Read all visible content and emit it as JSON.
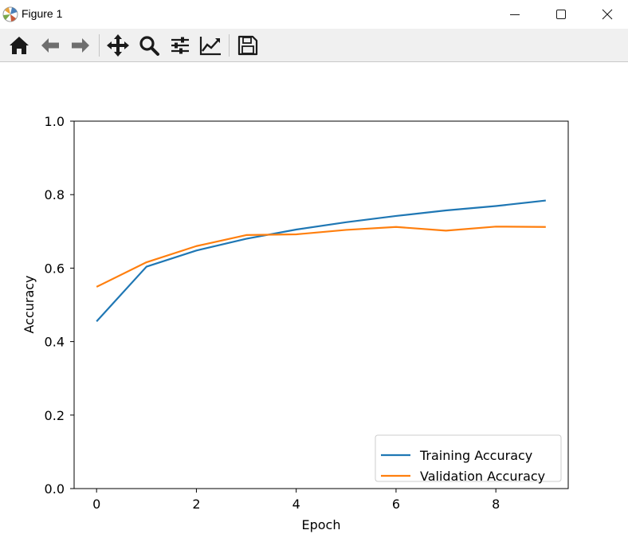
{
  "window": {
    "title": "Figure 1",
    "app_icon": "matplotlib-logo-icon",
    "controls": [
      "minimize-icon",
      "maximize-icon",
      "close-icon"
    ]
  },
  "toolbar": {
    "tools": [
      "home-icon",
      "back-arrow-icon",
      "forward-arrow-icon",
      "pan-move-icon",
      "zoom-magnifier-icon",
      "configure-subplots-icon",
      "edit-axis-icon",
      "save-floppy-icon"
    ],
    "colors": {
      "icon": "#1a1a1a",
      "icon_disabled": "#6e6e6e",
      "background": "#f0f0f0"
    }
  },
  "chart_data": {
    "type": "line",
    "title": "",
    "xlabel": "Epoch",
    "ylabel": "Accuracy",
    "xlim": [
      -0.45,
      9.45
    ],
    "ylim": [
      0.0,
      1.0
    ],
    "xticks": [
      0,
      2,
      4,
      6,
      8
    ],
    "yticks": [
      "0.0",
      "0.2",
      "0.4",
      "0.6",
      "0.8",
      "1.0"
    ],
    "grid": false,
    "legend_position": "lower right",
    "x": [
      0,
      1,
      2,
      3,
      4,
      5,
      6,
      7,
      8,
      9
    ],
    "series": [
      {
        "name": "Training Accuracy",
        "color": "#1f77b4",
        "values": [
          0.455,
          0.604,
          0.648,
          0.68,
          0.705,
          0.725,
          0.742,
          0.757,
          0.769,
          0.784
        ]
      },
      {
        "name": "Validation Accuracy",
        "color": "#ff7f0e",
        "values": [
          0.549,
          0.616,
          0.66,
          0.69,
          0.692,
          0.704,
          0.712,
          0.702,
          0.713,
          0.712
        ]
      }
    ]
  }
}
